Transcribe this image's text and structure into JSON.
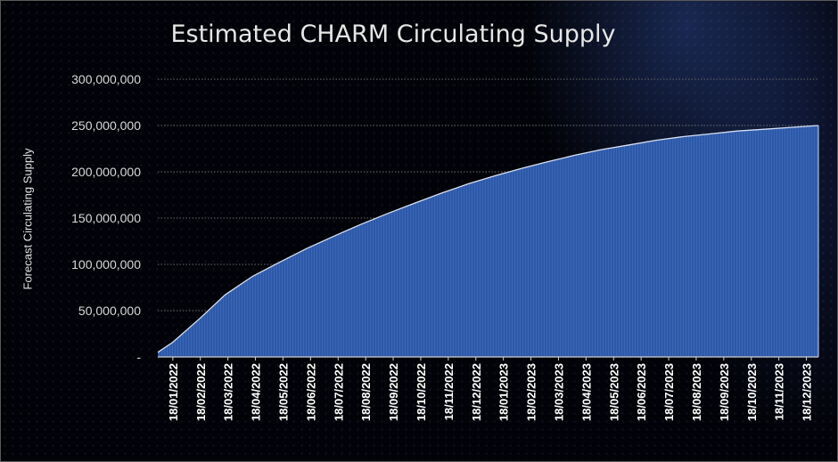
{
  "chart_data": {
    "type": "area",
    "title": "Estimated CHARM Circulating Supply",
    "xlabel": "",
    "ylabel": "Forecast Circulating Supply",
    "ylim": [
      0,
      300000000
    ],
    "y_ticks": [
      {
        "value": 0,
        "label": "-"
      },
      {
        "value": 50000000,
        "label": "50,000,000"
      },
      {
        "value": 100000000,
        "label": "100,000,000"
      },
      {
        "value": 150000000,
        "label": "150,000,000"
      },
      {
        "value": 200000000,
        "label": "200,000,000"
      },
      {
        "value": 250000000,
        "label": "250,000,000"
      },
      {
        "value": 300000000,
        "label": "300,000,000"
      }
    ],
    "x_ticks": [
      "18/01/2022",
      "18/02/2022",
      "18/03/2022",
      "18/04/2022",
      "18/05/2022",
      "18/06/2022",
      "18/07/2022",
      "18/08/2022",
      "18/09/2022",
      "18/10/2022",
      "18/11/2022",
      "18/12/2022",
      "18/01/2023",
      "18/02/2023",
      "18/03/2023",
      "18/04/2023",
      "18/05/2023",
      "18/06/2023",
      "18/07/2023",
      "18/08/2023",
      "18/09/2023",
      "18/10/2023",
      "18/11/2023",
      "18/12/2023"
    ],
    "grid": true,
    "series": [
      {
        "color": "#2e59a8",
        "x": [
          "2022-01-01",
          "2022-01-18",
          "2022-02-18",
          "2022-03-18",
          "2022-04-18",
          "2022-05-18",
          "2022-06-18",
          "2022-07-18",
          "2022-08-18",
          "2022-09-18",
          "2022-10-18",
          "2022-11-18",
          "2022-12-18",
          "2023-01-18",
          "2023-02-18",
          "2023-03-18",
          "2023-04-18",
          "2023-05-18",
          "2023-06-18",
          "2023-07-18",
          "2023-08-18",
          "2023-09-18",
          "2023-10-18",
          "2023-11-18",
          "2023-12-18",
          "2024-01-18"
        ],
        "values": [
          5000000,
          16000000,
          42000000,
          67000000,
          87000000,
          102000000,
          117000000,
          130000000,
          143000000,
          155000000,
          166000000,
          177000000,
          187000000,
          196000000,
          204000000,
          211000000,
          218000000,
          224000000,
          229000000,
          234000000,
          238000000,
          241000000,
          244000000,
          246000000,
          248000000,
          250000000
        ]
      }
    ]
  }
}
